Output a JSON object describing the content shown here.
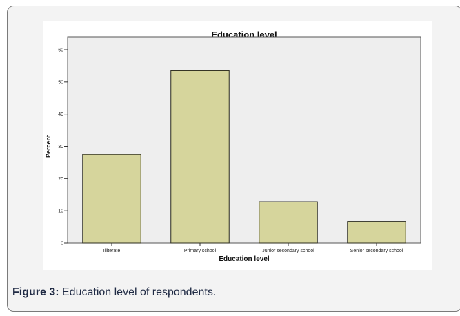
{
  "caption": {
    "label": "Figure 3:",
    "text": " Education level of respondents."
  },
  "colors": {
    "bar_fill": "#d6d59c",
    "bar_stroke": "#2b2b1e",
    "plot_background": "#eeeeee",
    "caption_text": "#1f2a44"
  },
  "chart_data": {
    "type": "bar",
    "title": "Education level",
    "xlabel": "Education level",
    "ylabel": "Percent",
    "categories": [
      "Illiterate",
      "Primary school",
      "Junior secondary school",
      "Senior secondary school"
    ],
    "values": [
      27.5,
      53.5,
      12.8,
      6.7
    ],
    "ylim": [
      0,
      60
    ],
    "yticks": [
      0,
      10,
      20,
      30,
      40,
      50,
      60
    ],
    "grid": false,
    "legend": "none"
  }
}
